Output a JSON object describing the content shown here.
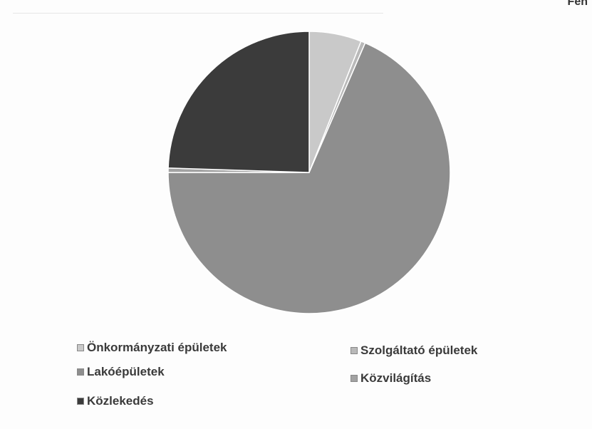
{
  "header": {
    "corner_text": "Fen"
  },
  "chart_data": {
    "type": "pie",
    "title": "",
    "categories": [
      "Önkormányzati épületek",
      "Szolgáltató épületek",
      "Lakóépületek",
      "Közvilágítás",
      "Közlekedés"
    ],
    "values": [
      6,
      0.5,
      68.5,
      0.5,
      24.5
    ],
    "unit": "%",
    "colors": [
      "#c9c9c9",
      "#b9b9b9",
      "#8e8e8e",
      "#a2a2a2",
      "#3b3b3b"
    ],
    "legend_placement": "bottom"
  }
}
